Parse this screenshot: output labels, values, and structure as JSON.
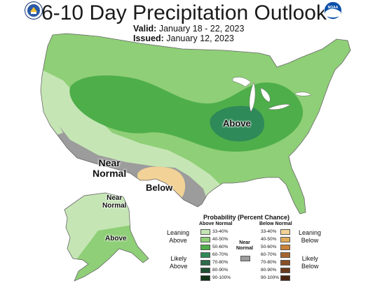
{
  "header": {
    "title": "6-10 Day Precipitation Outlook",
    "valid_label": "Valid:",
    "valid_value": "January 18 - 22, 2023",
    "issued_label": "Issued:",
    "issued_value": "January 12, 2023"
  },
  "logos": {
    "left": "doc-seal-icon",
    "right": "noaa-logo-icon",
    "right_text": "NOAA"
  },
  "map_labels": {
    "above_midwest": "Above",
    "near_normal_sw_1": "Near",
    "near_normal_sw_2": "Normal",
    "below_tx": "Below",
    "near_normal_ak_1": "Near",
    "near_normal_ak_2": "Normal",
    "above_ak": "Above"
  },
  "legend": {
    "title": "Probability (Percent Chance)",
    "above_header": "Above Normal",
    "below_header": "Below Normal",
    "near_header_1": "Near",
    "near_header_2": "Normal",
    "leaning_above_1": "Leaning",
    "leaning_above_2": "Above",
    "likely_above_1": "Likely",
    "likely_above_2": "Above",
    "leaning_below_1": "Leaning",
    "leaning_below_2": "Below",
    "likely_below_1": "Likely",
    "likely_below_2": "Below",
    "above_bins": [
      {
        "label": "33-40%",
        "color": "#c5e6b4"
      },
      {
        "label": "40-50%",
        "color": "#8fcf77"
      },
      {
        "label": "50-60%",
        "color": "#4eae4a"
      },
      {
        "label": "60-70%",
        "color": "#2e8a58"
      },
      {
        "label": "70-80%",
        "color": "#2c6a4a"
      },
      {
        "label": "80-90%",
        "color": "#1f4f33"
      },
      {
        "label": "90-100%",
        "color": "#123318"
      }
    ],
    "below_bins": [
      {
        "label": "33-40%",
        "color": "#f2d296"
      },
      {
        "label": "40-50%",
        "color": "#e0ab5a"
      },
      {
        "label": "50-60%",
        "color": "#c98238"
      },
      {
        "label": "60-70%",
        "color": "#a6652d"
      },
      {
        "label": "70-80%",
        "color": "#8a4f25"
      },
      {
        "label": "80-90%",
        "color": "#6a3a1c"
      },
      {
        "label": "90-100%",
        "color": "#4a2612"
      }
    ],
    "near_color": "#9c9c9c"
  }
}
